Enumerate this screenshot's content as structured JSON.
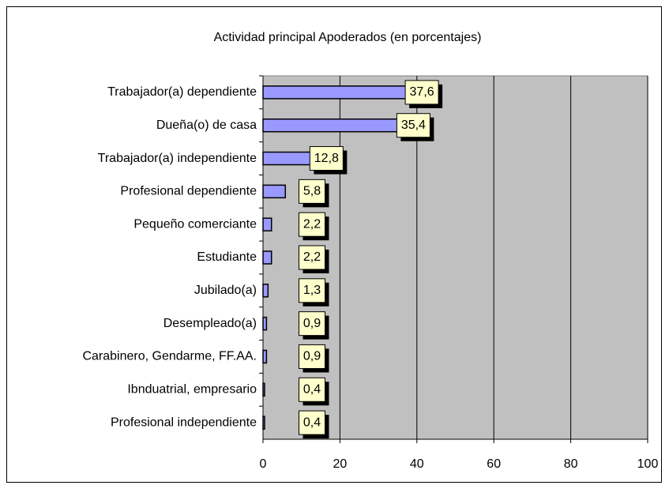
{
  "chart_data": {
    "type": "bar",
    "orientation": "horizontal",
    "title": "Actividad principal Apoderados (en porcentajes)",
    "categories": [
      "Trabajador(a) dependiente",
      "Dueña(o) de casa",
      "Trabajador(a) independiente",
      "Profesional dependiente",
      "Pequeño comerciante",
      "Estudiante",
      "Jubilado(a)",
      "Desempleado(a)",
      "Carabinero, Gendarme, FF.AA.",
      "Ibnduatrial, empresario",
      "Profesional independiente"
    ],
    "values": [
      37.6,
      35.4,
      12.8,
      5.8,
      2.2,
      2.2,
      1.3,
      0.9,
      0.9,
      0.4,
      0.4
    ],
    "value_labels": [
      "37,6",
      "35,4",
      "12,8",
      "5,8",
      "2,2",
      "2,2",
      "1,3",
      "0,9",
      "0,9",
      "0,4",
      "0,4"
    ],
    "color": "#9999ff",
    "xlim": [
      0,
      100
    ],
    "xticks": [
      0,
      20,
      40,
      60,
      80,
      100
    ],
    "grid": true
  }
}
